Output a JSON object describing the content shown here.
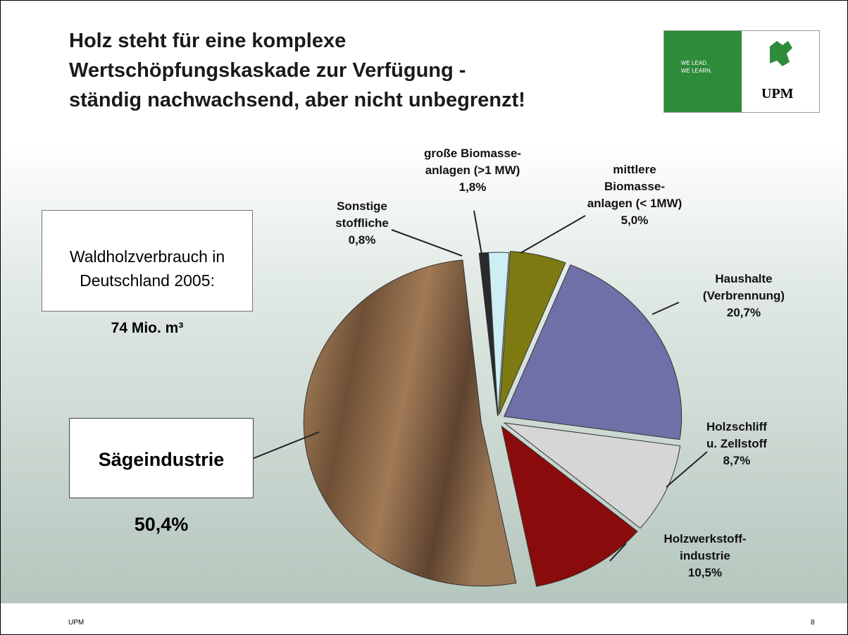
{
  "chart_data": {
    "type": "pie",
    "title": "Holz steht für eine komplexe\nWertschöpfungskaskade zur Verfügung -\nständig nachwachsend, aber nicht unbegrenzt!",
    "categories": [
      "Sonstige\nstoffliche",
      "große Biomasse-\nanlagen (>1 MW)",
      "mittlere\nBiomasse-\nanlagen (< 1MW)",
      "Haushalte\n(Verbrennung)",
      "Holzschliff\nu. Zellstoff",
      "Holzwerkstoff-\nindustrie",
      "Sägeindustrie"
    ],
    "values": [
      0.8,
      1.8,
      5.0,
      20.7,
      8.7,
      10.5,
      50.4
    ],
    "value_labels": [
      "0,8%",
      "1,8%",
      "5,0%",
      "20,7%",
      "8,7%",
      "10,5%",
      "50,4%"
    ],
    "colors": [
      "#2a2a2a",
      "#cdeef5",
      "#7d7a12",
      "#7070a8",
      "#d6d6d6",
      "#8a0b0b",
      "#8c6a48"
    ],
    "annotation": {
      "text": "Waldholzverbrauch in\nDeutschland 2005:",
      "value": "74 Mio. m³"
    }
  },
  "logo": {
    "slogan": "WE LEAD.\nWE LEARN.",
    "brand": "UPM"
  },
  "footer": {
    "left": "UPM",
    "page": "8"
  }
}
